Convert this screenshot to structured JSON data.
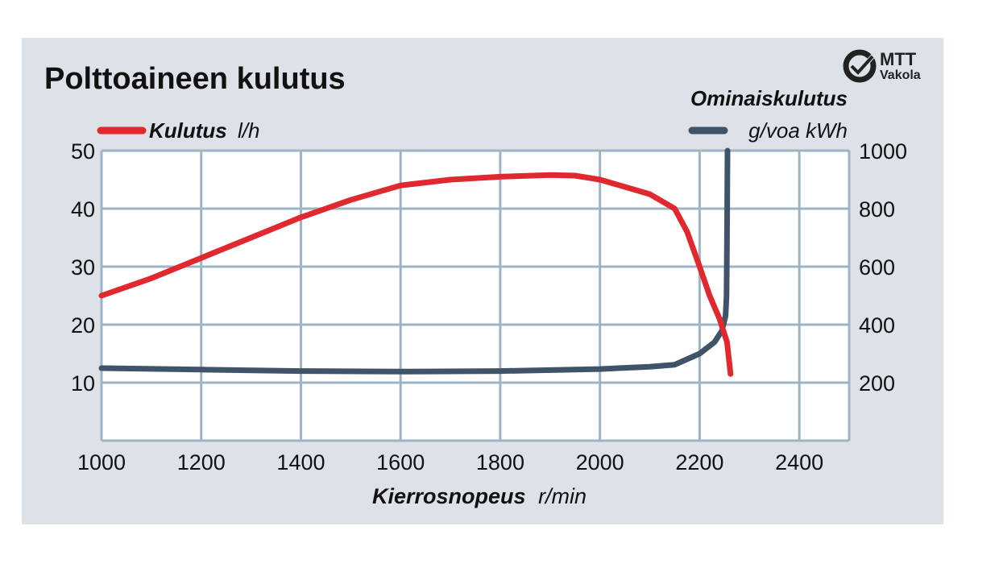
{
  "chart_data": {
    "type": "line",
    "title": "Polttoaineen kulutus",
    "xlabel_bold": "Kierrosnopeus",
    "xlabel_unit": "r/min",
    "right_axis_title": "Ominaiskulutus",
    "xlim": [
      1000,
      2500
    ],
    "ylim_left": [
      0,
      50
    ],
    "ylim_right": [
      0,
      1000
    ],
    "x_ticks": [
      "1000",
      "1200",
      "1400",
      "1600",
      "1800",
      "2000",
      "2200",
      "2400"
    ],
    "y_ticks_left": [
      "10",
      "20",
      "30",
      "40",
      "50"
    ],
    "y_ticks_right": [
      "200",
      "400",
      "600",
      "800",
      "1000"
    ],
    "grid": true,
    "series": [
      {
        "name_bold": "Kulutus",
        "name_unit": "l/h",
        "axis": "left",
        "color": "#e0282e",
        "points": [
          [
            1000,
            25
          ],
          [
            1100,
            28
          ],
          [
            1200,
            31.5
          ],
          [
            1300,
            35
          ],
          [
            1400,
            38.5
          ],
          [
            1500,
            41.5
          ],
          [
            1600,
            44
          ],
          [
            1700,
            45
          ],
          [
            1800,
            45.5
          ],
          [
            1900,
            45.8
          ],
          [
            1950,
            45.7
          ],
          [
            2000,
            45
          ],
          [
            2100,
            42.5
          ],
          [
            2150,
            40
          ],
          [
            2175,
            36
          ],
          [
            2200,
            30
          ],
          [
            2220,
            25
          ],
          [
            2240,
            21
          ],
          [
            2255,
            17
          ],
          [
            2262,
            11.5
          ]
        ]
      },
      {
        "name_bold": "",
        "name_unit": "g/voa kWh",
        "axis": "right",
        "color": "#3f5468",
        "points": [
          [
            1000,
            250
          ],
          [
            1200,
            245
          ],
          [
            1400,
            240
          ],
          [
            1600,
            238
          ],
          [
            1800,
            240
          ],
          [
            2000,
            247
          ],
          [
            2100,
            255
          ],
          [
            2150,
            262
          ],
          [
            2200,
            300
          ],
          [
            2230,
            340
          ],
          [
            2245,
            380
          ],
          [
            2252,
            430
          ],
          [
            2254,
            500
          ],
          [
            2255,
            700
          ],
          [
            2256,
            1000
          ]
        ]
      }
    ]
  },
  "logo": {
    "text_top": "MTT",
    "text_bottom": "Vakola"
  }
}
